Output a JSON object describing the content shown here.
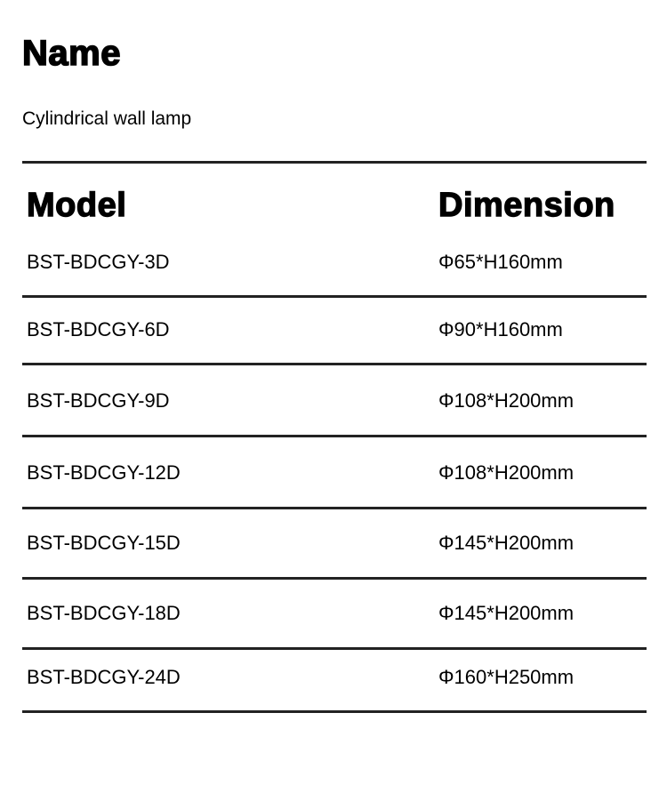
{
  "name_heading": "Name",
  "product_name": "Cylindrical wall lamp",
  "table": {
    "headers": {
      "model": "Model",
      "dimension": "Dimension"
    },
    "rows": [
      {
        "model": "BST-BDCGY-3D",
        "dimension": "Φ65*H160mm"
      },
      {
        "model": "BST-BDCGY-6D",
        "dimension": "Φ90*H160mm"
      },
      {
        "model": "BST-BDCGY-9D",
        "dimension": "Φ108*H200mm"
      },
      {
        "model": "BST-BDCGY-12D",
        "dimension": "Φ108*H200mm"
      },
      {
        "model": "BST-BDCGY-15D",
        "dimension": "Φ145*H200mm"
      },
      {
        "model": "BST-BDCGY-18D",
        "dimension": "Φ145*H200mm"
      },
      {
        "model": "BST-BDCGY-24D",
        "dimension": "Φ160*H250mm"
      }
    ]
  }
}
